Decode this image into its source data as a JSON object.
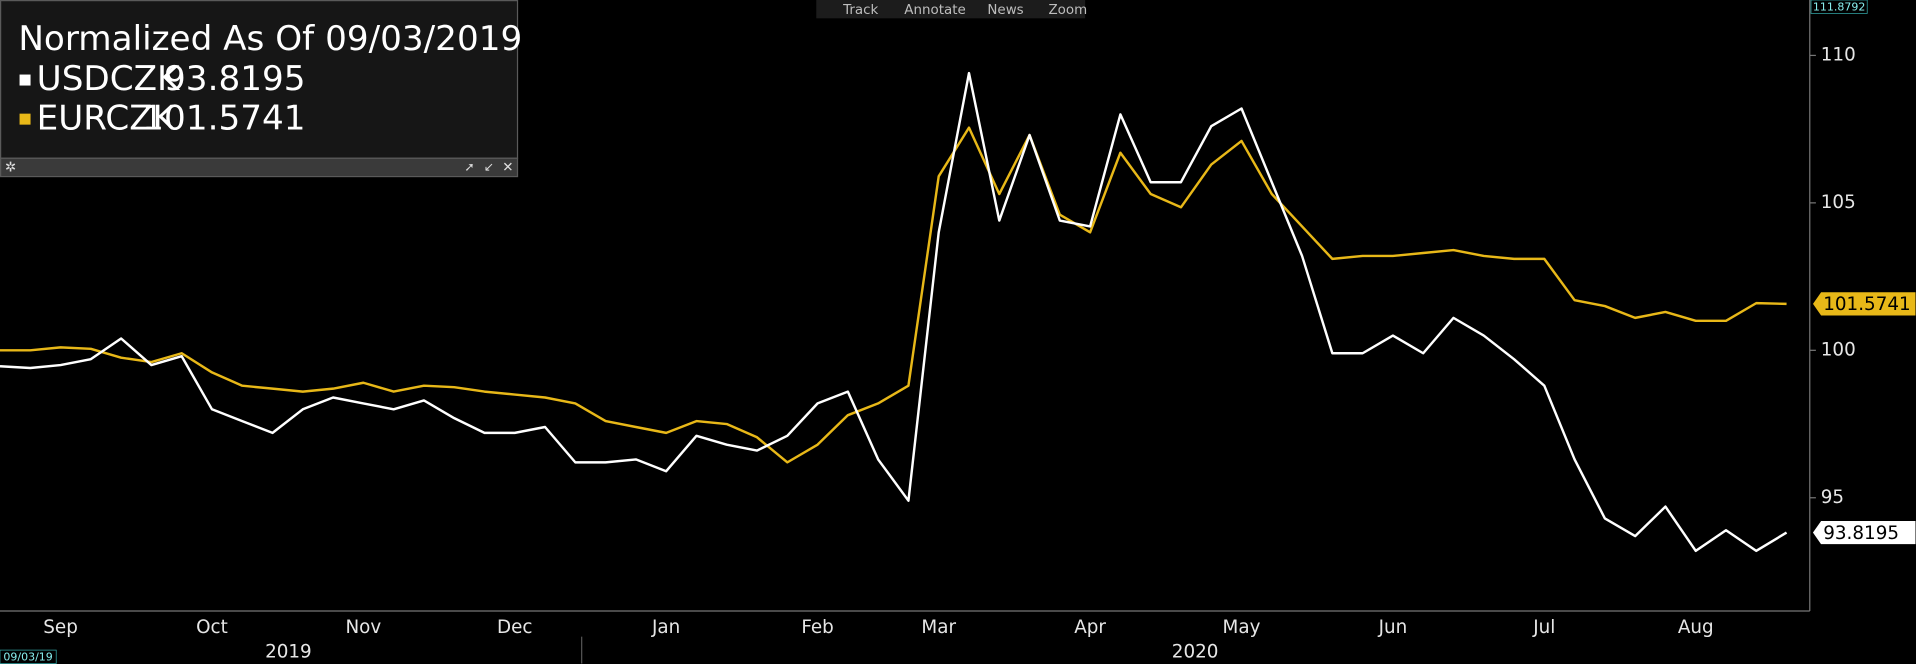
{
  "chart_data": {
    "type": "line",
    "title": "Normalized As Of 09/03/2019",
    "start_label": "09/03/19",
    "toolbar": [
      "Track",
      "Annotate",
      "News",
      "Zoom"
    ],
    "years": [
      "2019",
      "2020"
    ],
    "categories": [
      null,
      null,
      "Sep",
      null,
      null,
      null,
      null,
      "Oct",
      null,
      null,
      null,
      null,
      "Nov",
      null,
      null,
      null,
      null,
      "Dec",
      null,
      null,
      null,
      null,
      "Jan",
      null,
      null,
      null,
      null,
      "Feb",
      null,
      null,
      null,
      "Mar",
      null,
      null,
      null,
      null,
      "Apr",
      null,
      null,
      null,
      null,
      "May",
      null,
      null,
      null,
      null,
      "Jun",
      null,
      null,
      null,
      null,
      "Jul",
      null,
      null,
      null,
      null,
      "Aug",
      null,
      null,
      null
    ],
    "series": [
      {
        "name": "USDCZK",
        "color": "#ffffff",
        "values": [
          99.46,
          99.4,
          99.5,
          99.7,
          100.4,
          99.5,
          99.8,
          98.0,
          97.6,
          97.2,
          98.0,
          98.4,
          98.2,
          98.0,
          98.3,
          97.7,
          97.2,
          97.2,
          97.4,
          96.2,
          96.2,
          96.3,
          95.9,
          97.1,
          96.8,
          96.6,
          97.1,
          98.2,
          98.6,
          96.3,
          94.9,
          104.0,
          109.4,
          104.4,
          107.3,
          104.4,
          104.2,
          108.0,
          105.7,
          105.7,
          107.6,
          108.2,
          105.7,
          103.2,
          99.9,
          99.9,
          100.5,
          99.9,
          101.1,
          100.5,
          99.7,
          98.8,
          96.3,
          94.3,
          93.7,
          94.7,
          93.2,
          93.9,
          93.2,
          93.8195
        ]
      },
      {
        "name": "EURCZK",
        "color": "#e8b818",
        "values": [
          100.0,
          100.0,
          100.1,
          100.05,
          99.75,
          99.6,
          99.9,
          99.25,
          98.8,
          98.7,
          98.6,
          98.7,
          98.9,
          98.6,
          98.8,
          98.75,
          98.6,
          98.5,
          98.4,
          98.2,
          97.6,
          97.4,
          97.2,
          97.6,
          97.5,
          97.05,
          96.2,
          96.8,
          97.8,
          98.2,
          98.8,
          105.9,
          107.55,
          105.3,
          107.3,
          104.6,
          104.0,
          106.7,
          105.3,
          104.85,
          106.3,
          107.1,
          105.3,
          104.2,
          103.1,
          103.2,
          103.2,
          103.3,
          103.4,
          103.2,
          103.1,
          103.1,
          101.7,
          101.5,
          101.1,
          101.3,
          101.0,
          101.0,
          101.6,
          101.5741
        ]
      }
    ],
    "ylim": [
      91.16,
      111.8792
    ],
    "yticks": [
      95,
      100,
      105,
      110
    ],
    "grid": false
  }
}
